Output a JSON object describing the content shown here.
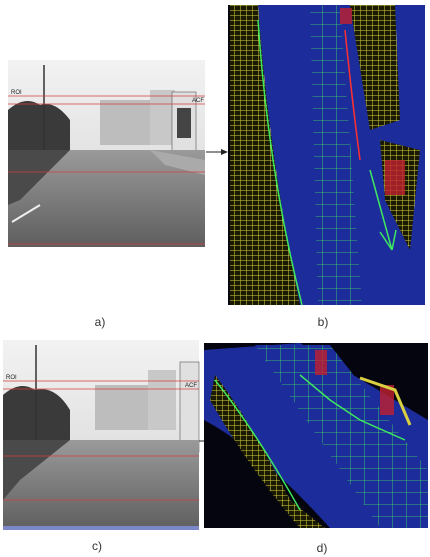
{
  "figure": {
    "panels": [
      {
        "caption": "a)",
        "tags": [
          "ROI",
          "ACF"
        ]
      },
      {
        "caption": "b)"
      },
      {
        "caption": "c)",
        "tags": [
          "ROI",
          "ACF"
        ]
      },
      {
        "caption": "d)"
      }
    ]
  }
}
